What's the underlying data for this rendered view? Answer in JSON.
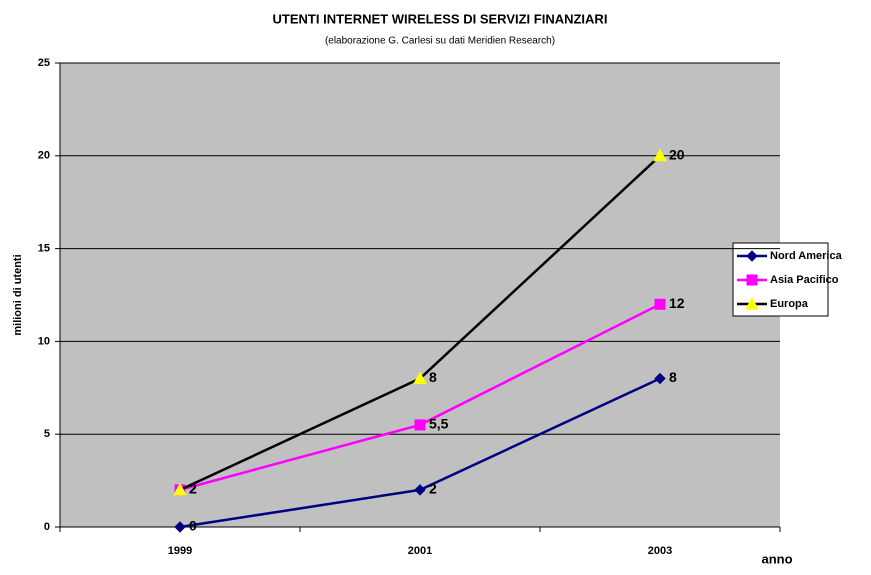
{
  "chart_data": {
    "type": "line",
    "title": "UTENTI INTERNET WIRELESS DI SERVIZI FINANZIARI",
    "subtitle": "(elaborazione G. Carlesi su dati Meridien Research)",
    "y_label": "milioni di utenti",
    "x_label": "anno",
    "categories": [
      "1999",
      "2001",
      "2003"
    ],
    "series": [
      {
        "name": "Nord America",
        "color": "#000080",
        "marker": "diamond",
        "marker_color": "#000080",
        "values": [
          0,
          2,
          8
        ]
      },
      {
        "name": "Asia Pacifico",
        "color": "#ff00ff",
        "marker": "square",
        "marker_color": "#ff00ff",
        "values": [
          2,
          5.5,
          12
        ],
        "value_labels": [
          "2",
          "5,5",
          "12"
        ]
      },
      {
        "name": "Europa",
        "color": "#000000",
        "marker": "triangle",
        "marker_color": "#ffff00",
        "values": [
          2,
          8,
          20
        ]
      }
    ],
    "ylim": [
      0,
      25
    ],
    "yticks": [
      0,
      5,
      10,
      15,
      20,
      25
    ],
    "grid": true,
    "legend": "right"
  }
}
